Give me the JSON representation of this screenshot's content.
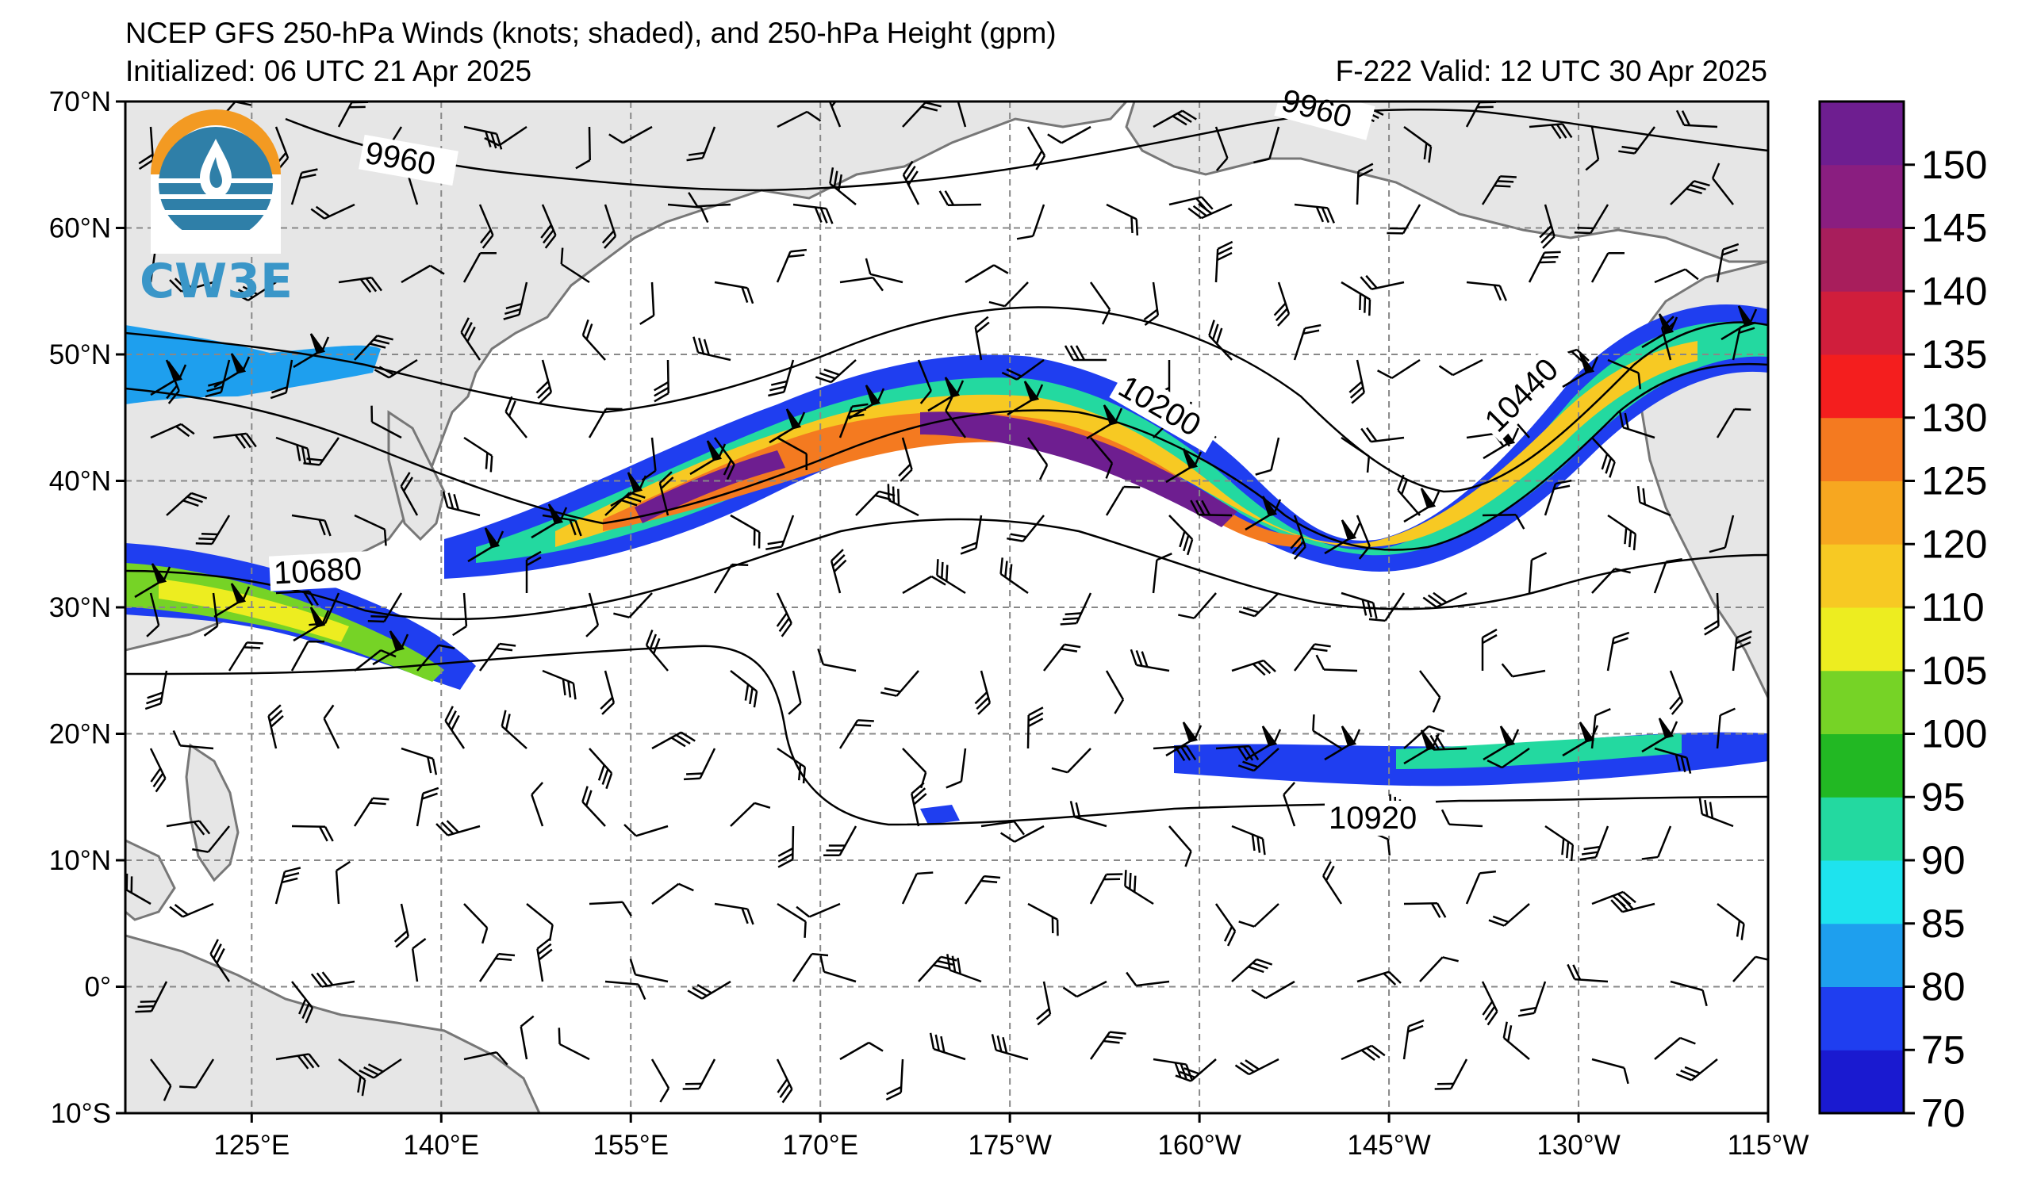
{
  "title": {
    "line1": "NCEP GFS 250-hPa Winds (knots; shaded), and 250-hPa Height (gpm)",
    "line2": "Initialized: 06 UTC 21 Apr 2025",
    "valid": "F-222  Valid: 12 UTC 30 Apr 2025"
  },
  "logo": {
    "text": "CW3E",
    "icon": "water-drop-sun-icon"
  },
  "map": {
    "lat_labels": [
      "70°N",
      "60°N",
      "50°N",
      "40°N",
      "30°N",
      "20°N",
      "10°N",
      "0°",
      "10°S"
    ],
    "lon_labels": [
      "125°E",
      "140°E",
      "155°E",
      "170°E",
      "175°W",
      "160°W",
      "145°W",
      "130°W",
      "115°W"
    ],
    "lat_range": [
      -10,
      70
    ],
    "lon_range_east": [
      115,
      245
    ],
    "grid": "dashed",
    "land_color": "#e6e6e6",
    "contours": [
      {
        "value": 9960,
        "label": "9960"
      },
      {
        "value": 10200,
        "label": "10200"
      },
      {
        "value": 10440,
        "label": "10440"
      },
      {
        "value": 10680,
        "label": "10680"
      },
      {
        "value": 10920,
        "label": "10920"
      }
    ]
  },
  "colorbar": {
    "labels": [
      "70",
      "75",
      "80",
      "85",
      "90",
      "95",
      "100",
      "105",
      "110",
      "120",
      "125",
      "130",
      "135",
      "140",
      "145",
      "150"
    ],
    "colors": [
      "#1a1ad0",
      "#1f3ef0",
      "#1e9fee",
      "#1ee3ee",
      "#23d9a0",
      "#22b823",
      "#76d326",
      "#eded20",
      "#f7c923",
      "#f7a720",
      "#f47a20",
      "#f41e1e",
      "#d01e3c",
      "#a81e5c",
      "#8a1e80",
      "#6e1e90"
    ]
  }
}
